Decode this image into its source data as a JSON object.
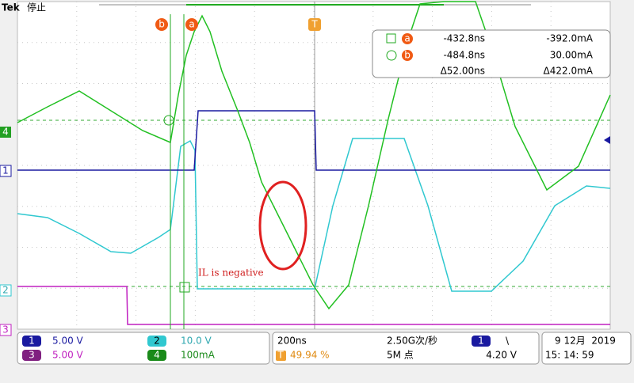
{
  "header": {
    "brand": "Tek",
    "status": "停止"
  },
  "markers": {
    "cursor_b": "b",
    "cursor_a": "a",
    "trigger": "T"
  },
  "readout": {
    "rows": [
      {
        "marker": "a",
        "time": "-432.8ns",
        "value": "-392.0mA"
      },
      {
        "marker": "b",
        "time": "-484.8ns",
        "value": "30.00mA"
      },
      {
        "marker": "",
        "time": "Δ52.00ns",
        "value": "Δ422.0mA"
      }
    ]
  },
  "channel_labels": [
    "4",
    "1",
    "2",
    "3"
  ],
  "annotation": "IL is negative",
  "status_bar": {
    "channels": [
      {
        "id": "1",
        "scale": "5.00 V"
      },
      {
        "id": "2",
        "scale": "10.0 V"
      },
      {
        "id": "3",
        "scale": "5.00 V"
      },
      {
        "id": "4",
        "scale": "100mA"
      }
    ],
    "timebase": "200ns",
    "trigger_pos_icon": "T",
    "trigger_pos": "49.94 %",
    "sample_rate": "2.50G次/秒",
    "record_length": "5M 点",
    "trigger_source": "1",
    "trigger_slope": "\\",
    "trigger_level": "4.20 V",
    "date": "9 12月  2019",
    "time": "15: 14: 59"
  }
}
